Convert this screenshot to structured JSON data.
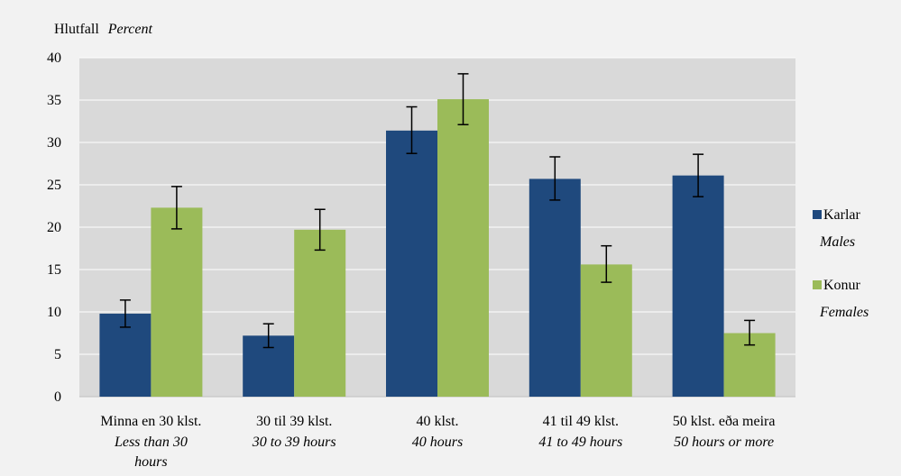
{
  "chart_data": {
    "type": "bar",
    "ytitle": "Hlutfall",
    "ytitle_en": "Percent",
    "ylim": [
      0,
      40
    ],
    "yticks": [
      0,
      5,
      10,
      15,
      20,
      25,
      30,
      35,
      40
    ],
    "grid": true,
    "legend_position": "right",
    "categories": [
      {
        "label": "Minna en 30 klst.",
        "label_en_lines": [
          "Less than 30",
          "hours"
        ]
      },
      {
        "label": "30 til 39 klst.",
        "label_en_lines": [
          "30 to 39 hours"
        ]
      },
      {
        "label": "40 klst.",
        "label_en_lines": [
          "40 hours"
        ]
      },
      {
        "label": "41 til 49 klst.",
        "label_en_lines": [
          "41 to 49 hours"
        ]
      },
      {
        "label": "50 klst. eða meira",
        "label_en_lines": [
          "50 hours or more"
        ]
      }
    ],
    "series": [
      {
        "name": "Karlar",
        "name_en": "Males",
        "color": "#1f497d",
        "values": [
          9.8,
          7.2,
          31.4,
          25.7,
          26.1
        ],
        "error_low": [
          8.2,
          5.8,
          28.7,
          23.2,
          23.6
        ],
        "error_high": [
          11.4,
          8.6,
          34.2,
          28.3,
          28.6
        ]
      },
      {
        "name": "Konur",
        "name_en": "Females",
        "color": "#9bbb59",
        "values": [
          22.3,
          19.7,
          35.1,
          15.6,
          7.5
        ],
        "error_low": [
          19.8,
          17.3,
          32.1,
          13.5,
          6.1
        ],
        "error_high": [
          24.8,
          22.1,
          38.1,
          17.8,
          9.0
        ]
      }
    ]
  },
  "colors": {
    "plot_background": "#d9d9d9",
    "frame_background": "#f2f2f2",
    "gridline": "#ffffff"
  }
}
